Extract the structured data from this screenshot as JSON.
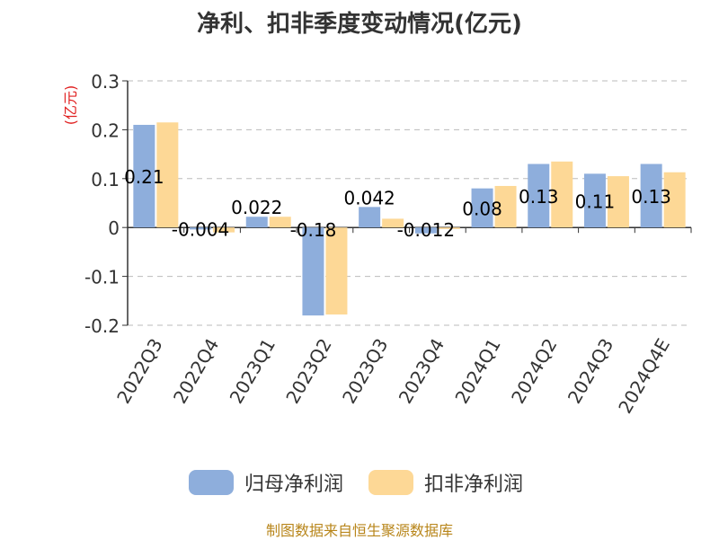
{
  "title": "净利、扣非季度变动情况(亿元)",
  "source": "制图数据来自恒生聚源数据库",
  "colors": {
    "series1": "#8eaedc",
    "series2": "#fdd896",
    "axis": "#333333",
    "grid": "#bbbbbb",
    "unit": "#e02020"
  },
  "chart_data": {
    "type": "bar",
    "title": "净利、扣非季度变动情况(亿元)",
    "ylabel": "(亿元)",
    "ylim": [
      -0.2,
      0.3
    ],
    "yticks": [
      0.3,
      0.2,
      0.1,
      0,
      -0.1,
      -0.2
    ],
    "ytick_labels": [
      "0.3",
      "0.2",
      "0.1",
      "0",
      "-0.1",
      "-0.2"
    ],
    "grid": true,
    "legend_position": "bottom",
    "categories": [
      "2022Q3",
      "2022Q4",
      "2023Q1",
      "2023Q2",
      "2023Q3",
      "2023Q4",
      "2024Q1",
      "2024Q2",
      "2024Q3",
      "2024Q4E"
    ],
    "series": [
      {
        "name": "归母净利润",
        "values": [
          0.21,
          -0.004,
          0.022,
          -0.18,
          0.042,
          -0.012,
          0.08,
          0.13,
          0.11,
          0.13
        ],
        "labels": [
          "0.21",
          "-0.004",
          "0.022",
          "-0.18",
          "0.042",
          "-0.012",
          "0.08",
          "0.13",
          "0.11",
          "0.13"
        ]
      },
      {
        "name": "扣非净利润",
        "values": [
          0.215,
          -0.01,
          0.022,
          -0.178,
          0.018,
          -0.003,
          0.085,
          0.135,
          0.105,
          0.113
        ]
      }
    ]
  },
  "legend": {
    "items": [
      "归母净利润",
      "扣非净利润"
    ]
  }
}
